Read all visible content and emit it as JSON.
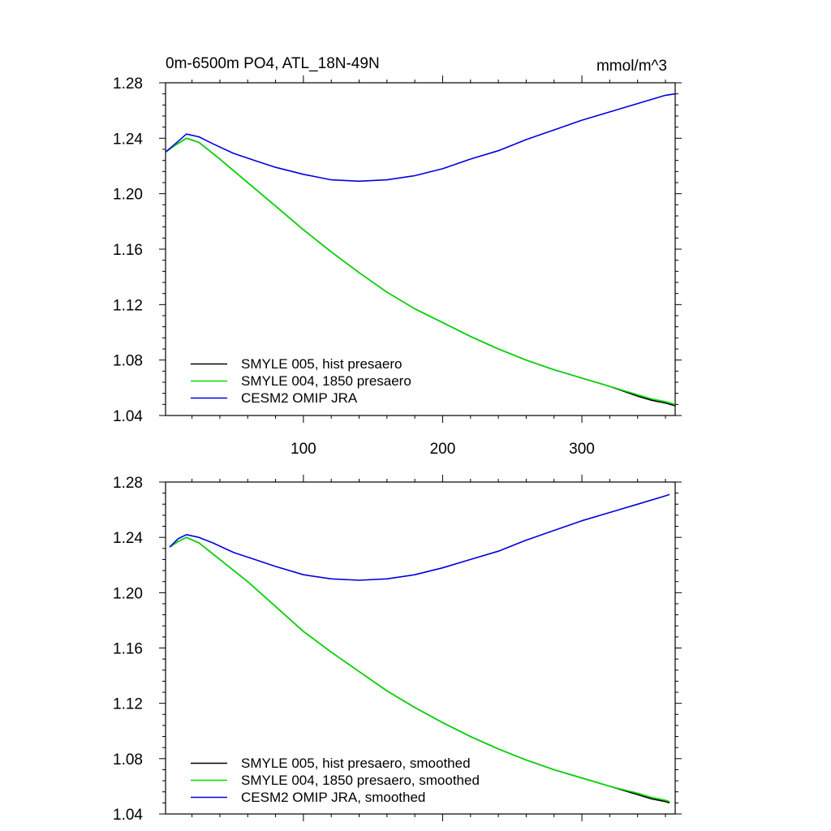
{
  "figure": {
    "title_left": "0m-6500m PO4, ATL_18N-49N",
    "title_right": "mmol/m^3"
  },
  "chart_data": [
    {
      "type": "line",
      "panel": "top",
      "title": "0m-6500m PO4, ATL_18N-49N",
      "units": "mmol/m^3",
      "xlim": [
        1,
        367
      ],
      "ylim": [
        1.04,
        1.28
      ],
      "xticks": [
        100,
        200,
        300
      ],
      "xtick_labels": [
        "100",
        "200",
        "300"
      ],
      "yticks": [
        1.04,
        1.08,
        1.12,
        1.16,
        1.2,
        1.24,
        1.28
      ],
      "ytick_labels": [
        "1.04",
        "1.08",
        "1.12",
        "1.16",
        "1.20",
        "1.24",
        "1.28"
      ],
      "grid": false,
      "legend_position": "bottom-left",
      "series": [
        {
          "name": "SMYLE 005, hist presaero",
          "color": "#000000",
          "x": [
            1,
            8,
            16,
            25,
            40,
            60,
            80,
            100,
            120,
            140,
            160,
            180,
            200,
            220,
            240,
            260,
            280,
            300,
            320,
            340,
            350,
            360,
            367
          ],
          "y": [
            1.23,
            1.235,
            1.24,
            1.237,
            1.225,
            1.208,
            1.191,
            1.174,
            1.158,
            1.143,
            1.129,
            1.117,
            1.107,
            1.097,
            1.088,
            1.08,
            1.073,
            1.067,
            1.061,
            1.054,
            1.051,
            1.049,
            1.047
          ]
        },
        {
          "name": "SMYLE 004, 1850 presaero",
          "color": "#00e000",
          "x": [
            1,
            8,
            16,
            25,
            40,
            60,
            80,
            100,
            120,
            140,
            160,
            180,
            200,
            220,
            240,
            260,
            280,
            300,
            320,
            340,
            350,
            360,
            367
          ],
          "y": [
            1.23,
            1.235,
            1.24,
            1.237,
            1.225,
            1.208,
            1.191,
            1.174,
            1.158,
            1.143,
            1.129,
            1.117,
            1.107,
            1.097,
            1.088,
            1.08,
            1.073,
            1.067,
            1.061,
            1.055,
            1.052,
            1.05,
            1.048
          ]
        },
        {
          "name": "CESM2 OMIP JRA",
          "color": "#0000e0",
          "x": [
            1,
            8,
            16,
            25,
            35,
            50,
            65,
            80,
            100,
            120,
            140,
            160,
            180,
            200,
            220,
            240,
            260,
            280,
            300,
            320,
            340,
            360,
            367
          ],
          "y": [
            1.23,
            1.236,
            1.243,
            1.241,
            1.236,
            1.229,
            1.224,
            1.219,
            1.214,
            1.21,
            1.209,
            1.21,
            1.213,
            1.218,
            1.225,
            1.231,
            1.239,
            1.246,
            1.253,
            1.259,
            1.265,
            1.271,
            1.272
          ]
        }
      ]
    },
    {
      "type": "line",
      "panel": "bottom",
      "xlim": [
        1,
        367
      ],
      "ylim": [
        1.04,
        1.28
      ],
      "xticks": [
        100,
        200,
        300
      ],
      "xtick_labels": [],
      "yticks": [
        1.04,
        1.08,
        1.12,
        1.16,
        1.2,
        1.24,
        1.28
      ],
      "ytick_labels": [
        "1.04",
        "1.08",
        "1.12",
        "1.16",
        "1.20",
        "1.24",
        "1.28"
      ],
      "grid": false,
      "legend_position": "bottom-left",
      "series": [
        {
          "name": "SMYLE 005, hist presaero, smoothed",
          "color": "#000000",
          "x": [
            4,
            10,
            16,
            25,
            40,
            60,
            80,
            100,
            120,
            140,
            160,
            180,
            200,
            220,
            240,
            260,
            280,
            300,
            320,
            340,
            350,
            360,
            363
          ],
          "y": [
            1.233,
            1.237,
            1.24,
            1.236,
            1.224,
            1.208,
            1.19,
            1.172,
            1.157,
            1.143,
            1.129,
            1.117,
            1.106,
            1.096,
            1.087,
            1.079,
            1.072,
            1.066,
            1.06,
            1.054,
            1.051,
            1.049,
            1.048
          ]
        },
        {
          "name": "SMYLE 004, 1850 presaero, smoothed",
          "color": "#00e000",
          "x": [
            4,
            10,
            16,
            25,
            40,
            60,
            80,
            100,
            120,
            140,
            160,
            180,
            200,
            220,
            240,
            260,
            280,
            300,
            320,
            340,
            350,
            360,
            363
          ],
          "y": [
            1.233,
            1.237,
            1.24,
            1.236,
            1.224,
            1.208,
            1.19,
            1.172,
            1.157,
            1.143,
            1.129,
            1.117,
            1.106,
            1.096,
            1.087,
            1.079,
            1.072,
            1.066,
            1.06,
            1.055,
            1.052,
            1.05,
            1.049
          ]
        },
        {
          "name": "CESM2 OMIP JRA, smoothed",
          "color": "#0000e0",
          "x": [
            4,
            10,
            16,
            25,
            35,
            50,
            65,
            80,
            100,
            120,
            140,
            160,
            180,
            200,
            220,
            240,
            260,
            280,
            300,
            320,
            340,
            360,
            363
          ],
          "y": [
            1.233,
            1.239,
            1.242,
            1.24,
            1.236,
            1.229,
            1.224,
            1.219,
            1.213,
            1.21,
            1.209,
            1.21,
            1.213,
            1.218,
            1.224,
            1.23,
            1.238,
            1.245,
            1.252,
            1.258,
            1.264,
            1.27,
            1.271
          ]
        }
      ]
    }
  ]
}
